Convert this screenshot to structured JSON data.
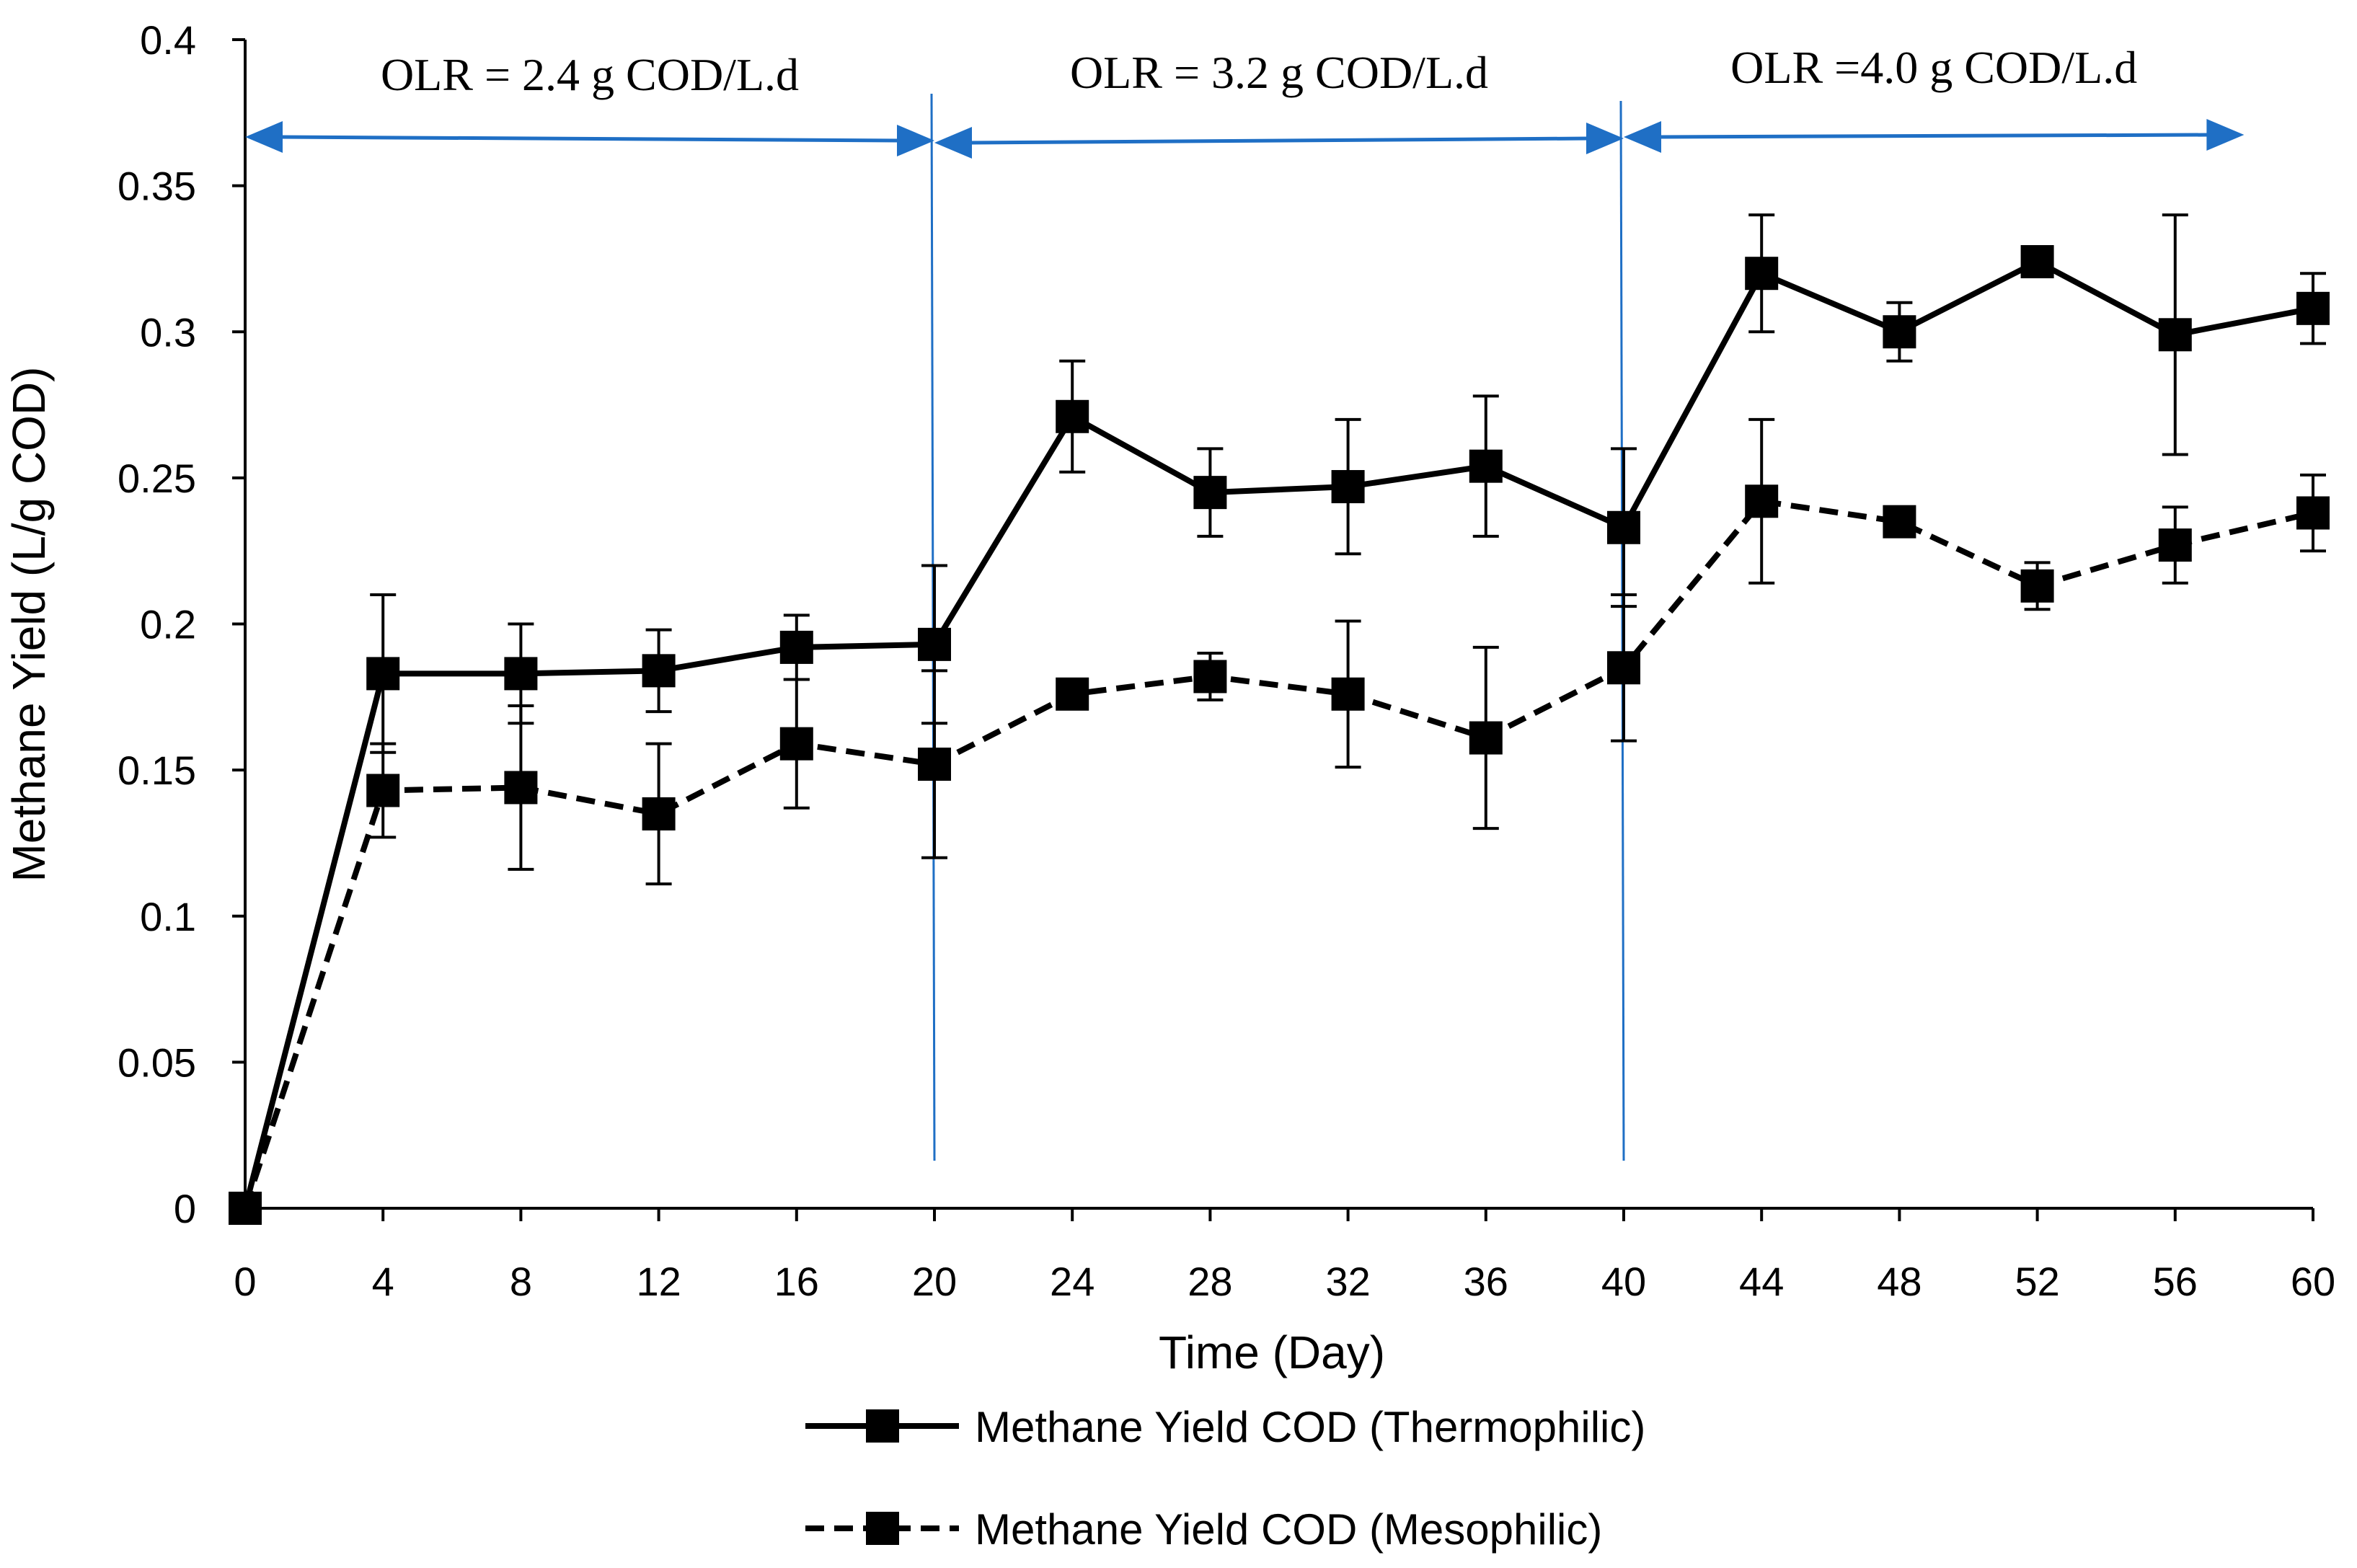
{
  "chart_data": {
    "type": "line",
    "title": "",
    "xlabel": "Time (Day)",
    "ylabel": "Methane Yield (L/g COD)",
    "xlim": [
      0,
      60
    ],
    "ylim": [
      0,
      0.4
    ],
    "x_ticks": [
      "0",
      "4",
      "8",
      "12",
      "16",
      "20",
      "24",
      "28",
      "32",
      "36",
      "40",
      "44",
      "48",
      "52",
      "56",
      "60"
    ],
    "y_ticks": [
      "0",
      "0.05",
      "0.1",
      "0.15",
      "0.2",
      "0.25",
      "0.3",
      "0.35",
      "0.4"
    ],
    "grid": false,
    "legend_position": "bottom",
    "x": [
      0,
      4,
      8,
      12,
      16,
      20,
      24,
      28,
      32,
      36,
      40,
      44,
      48,
      52,
      56,
      60
    ],
    "series": [
      {
        "name": "Methane Yield COD (Thermophilic)",
        "style": "solid",
        "marker": "square",
        "color": "#000000",
        "values": [
          0,
          0.183,
          0.183,
          0.184,
          0.192,
          0.193,
          0.271,
          0.245,
          0.247,
          0.254,
          0.233,
          0.32,
          0.3,
          0.324,
          0.299,
          0.308
        ],
        "error": [
          0,
          0.027,
          0.017,
          0.014,
          0.011,
          0.027,
          0.019,
          0.015,
          0.023,
          0.024,
          0.027,
          0.02,
          0.01,
          0.003,
          0.041,
          0.012
        ]
      },
      {
        "name": "Methane Yield COD (Mesophilic)",
        "style": "dashed",
        "marker": "square",
        "color": "#000000",
        "values": [
          0,
          0.143,
          0.144,
          0.135,
          0.159,
          0.152,
          0.176,
          0.182,
          0.176,
          0.161,
          0.185,
          0.242,
          0.235,
          0.213,
          0.227,
          0.238
        ],
        "error": [
          0,
          0.016,
          0.028,
          0.024,
          0.022,
          0.032,
          0.0,
          0.008,
          0.025,
          0.031,
          0.025,
          0.028,
          0.0,
          0.008,
          0.013,
          0.013
        ]
      }
    ],
    "reference_lines_x": [
      20,
      40
    ],
    "annotations": [
      {
        "text": "OLR = 2.4 g COD/L.d",
        "x_start": 0,
        "x_end": 20
      },
      {
        "text": "OLR = 3.2 g COD/L.d",
        "x_start": 20,
        "x_end": 40
      },
      {
        "text": "OLR =4.0 g COD/L.d",
        "x_start": 40,
        "x_end": 58
      }
    ],
    "annotation_color": "#1f6fc5"
  }
}
